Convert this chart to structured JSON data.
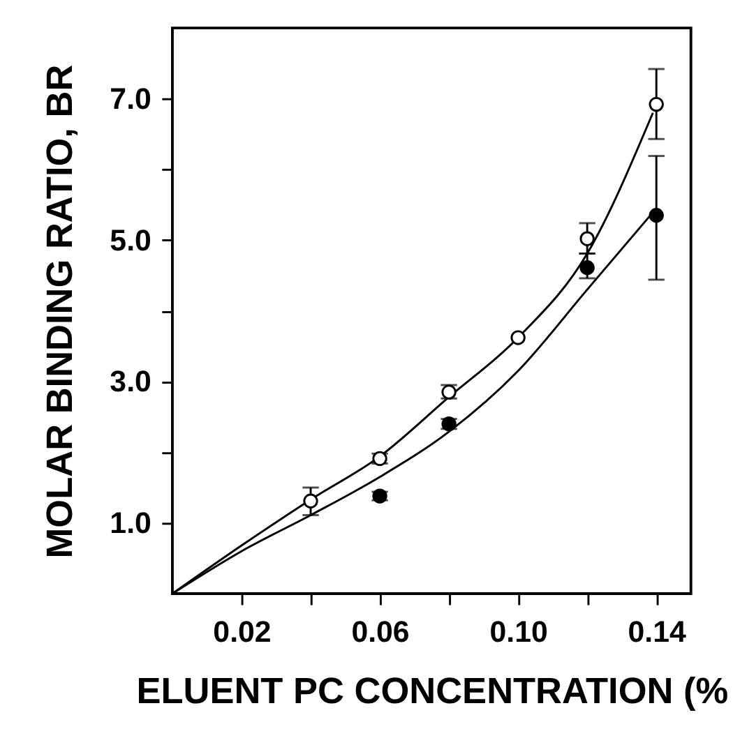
{
  "chart_data": {
    "type": "scatter",
    "xlabel": "ELUENT PC CONCENTRATION (%",
    "ylabel": "MOLAR BINDING RATIO, BR",
    "xlim": [
      0,
      0.15
    ],
    "xticks": [
      {
        "value": 0.02,
        "label": "0.02"
      },
      {
        "value": 0.04,
        "label": null
      },
      {
        "value": 0.06,
        "label": "0.06"
      },
      {
        "value": 0.08,
        "label": null
      },
      {
        "value": 0.1,
        "label": "0.10"
      },
      {
        "value": 0.12,
        "label": null
      },
      {
        "value": 0.14,
        "label": "0.14"
      }
    ],
    "ylim": [
      0,
      8
    ],
    "yticks": [
      {
        "value": 1,
        "label": "1.0"
      },
      {
        "value": 2,
        "label": null
      },
      {
        "value": 3,
        "label": "3.0"
      },
      {
        "value": 4,
        "label": null
      },
      {
        "value": 5,
        "label": "5.0"
      },
      {
        "value": 6,
        "label": null
      },
      {
        "value": 7,
        "label": "7.0"
      }
    ],
    "series": [
      {
        "type": "line",
        "color": "#000000",
        "marker": "none",
        "line_style": "solid",
        "x": [
          0,
          0.02,
          0.04,
          0.06,
          0.08,
          0.1,
          0.12,
          0.139
        ],
        "values": [
          0,
          0.68,
          1.33,
          1.94,
          2.78,
          3.62,
          4.81,
          6.8
        ]
      },
      {
        "type": "line",
        "color": "#000000",
        "marker": "none",
        "line_style": "solid",
        "x": [
          0,
          0.02,
          0.04,
          0.06,
          0.08,
          0.1,
          0.12,
          0.14
        ],
        "values": [
          0,
          0.6,
          1.11,
          1.65,
          2.29,
          3.15,
          4.3,
          5.45
        ]
      },
      {
        "color": "#ffffff",
        "marker": "circle",
        "x": [
          0.04,
          0.06,
          0.08,
          0.1,
          0.12,
          0.14
        ],
        "values": [
          1.31,
          1.91,
          2.85,
          3.62,
          5.02,
          6.92
        ],
        "errors": [
          [
            1.11,
            1.5
          ],
          [
            1.84,
            1.98
          ],
          [
            2.76,
            2.95
          ],
          null,
          [
            4.81,
            5.24
          ],
          [
            6.43,
            7.42
          ]
        ]
      },
      {
        "color": "#000000",
        "marker": "circle",
        "x": [
          0.06,
          0.08,
          0.12,
          0.14
        ],
        "values": [
          1.38,
          2.4,
          4.61,
          5.35
        ],
        "errors": [
          [
            1.32,
            1.44
          ],
          [
            2.33,
            2.47
          ],
          [
            4.46,
            4.81
          ],
          [
            4.44,
            6.19
          ]
        ]
      }
    ]
  }
}
